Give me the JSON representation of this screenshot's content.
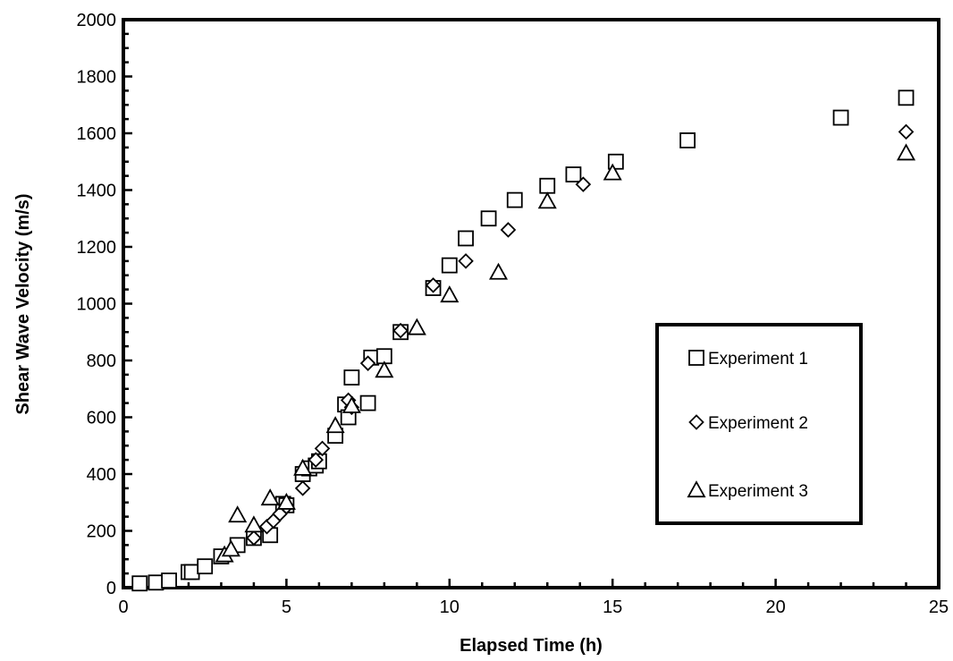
{
  "chart_data": {
    "type": "scatter",
    "title": "",
    "xlabel": "Elapsed Time (h)",
    "ylabel": "Shear Wave Velocity (m/s)",
    "xlim": [
      0,
      25
    ],
    "ylim": [
      0,
      2000
    ],
    "xticks": [
      0,
      5,
      10,
      15,
      20,
      25
    ],
    "yticks": [
      0,
      200,
      400,
      600,
      800,
      1000,
      1200,
      1400,
      1600,
      1800,
      2000
    ],
    "grid": false,
    "legend_position": "right",
    "series": [
      {
        "name": "Experiment 1",
        "marker": "square",
        "x": [
          0.5,
          1.0,
          1.4,
          2.0,
          2.1,
          2.5,
          3.0,
          3.5,
          4.0,
          4.5,
          4.9,
          5.0,
          5.5,
          5.7,
          5.9,
          6.0,
          6.5,
          6.8,
          6.9,
          7.0,
          7.5,
          7.6,
          8.0,
          8.5,
          9.5,
          10.0,
          10.5,
          11.2,
          12.0,
          13.0,
          13.8,
          15.1,
          17.3,
          22.0,
          24.0
        ],
        "y": [
          15,
          18,
          25,
          55,
          55,
          75,
          110,
          150,
          175,
          185,
          295,
          290,
          400,
          420,
          430,
          445,
          535,
          645,
          600,
          740,
          650,
          810,
          815,
          900,
          1055,
          1135,
          1230,
          1300,
          1365,
          1415,
          1455,
          1500,
          1575,
          1655,
          1725
        ]
      },
      {
        "name": "Experiment 2",
        "marker": "diamond",
        "x": [
          4.0,
          4.4,
          4.6,
          4.8,
          5.0,
          5.5,
          5.9,
          6.1,
          6.9,
          7.0,
          7.5,
          8.5,
          9.5,
          10.5,
          11.8,
          14.1,
          24.0
        ],
        "y": [
          175,
          215,
          235,
          260,
          285,
          350,
          450,
          490,
          660,
          635,
          790,
          905,
          1065,
          1150,
          1260,
          1420,
          1605
        ]
      },
      {
        "name": "Experiment 3",
        "marker": "triangle",
        "x": [
          3.1,
          3.3,
          3.5,
          4.0,
          4.5,
          5.0,
          5.5,
          6.5,
          7.0,
          8.0,
          9.0,
          10.0,
          11.5,
          13.0,
          15.0,
          24.0
        ],
        "y": [
          115,
          135,
          255,
          220,
          315,
          300,
          420,
          570,
          640,
          765,
          915,
          1030,
          1110,
          1360,
          1460,
          1530
        ]
      }
    ]
  }
}
